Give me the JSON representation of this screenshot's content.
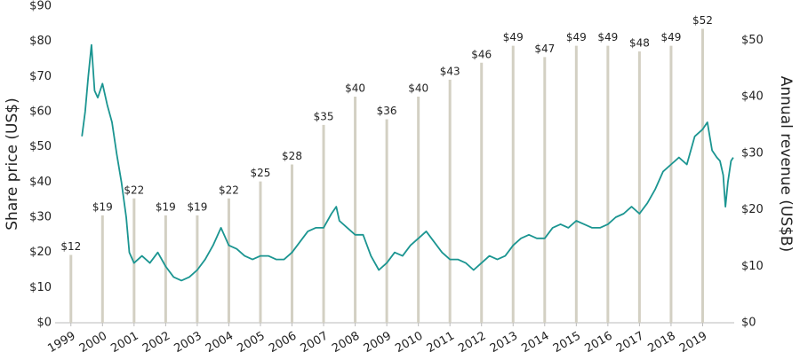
{
  "chart_data": {
    "type": "line",
    "y_label": "Share price (US$)",
    "y2_label": "Annual revenue (US$B)",
    "xlim": [
      1998.5,
      2020
    ],
    "xticks": [
      1999,
      2000,
      2001,
      2002,
      2003,
      2004,
      2005,
      2006,
      2007,
      2008,
      2009,
      2010,
      2011,
      2012,
      2013,
      2014,
      2015,
      2016,
      2017,
      2018,
      2019
    ],
    "ylim": [
      0,
      90
    ],
    "yticks": [
      {
        "value": 0,
        "label": "$0"
      },
      {
        "value": 10,
        "label": "$10"
      },
      {
        "value": 20,
        "label": "$20"
      },
      {
        "value": 30,
        "label": "$30"
      },
      {
        "value": 40,
        "label": "$40"
      },
      {
        "value": 50,
        "label": "$50"
      },
      {
        "value": 60,
        "label": "$60"
      },
      {
        "value": 70,
        "label": "$70"
      },
      {
        "value": 80,
        "label": "$80"
      },
      {
        "value": 90,
        "label": "$90"
      }
    ],
    "y2lim": [
      0,
      56
    ],
    "y2ticks": [
      {
        "value": 0,
        "label": "$0"
      },
      {
        "value": 10,
        "label": "$10"
      },
      {
        "value": 20,
        "label": "$20"
      },
      {
        "value": 30,
        "label": "$30"
      },
      {
        "value": 40,
        "label": "$40"
      },
      {
        "value": 50,
        "label": "$50"
      }
    ],
    "series": [
      {
        "type": "bar",
        "axis": "y2",
        "color": "#d3d0c3",
        "x": [
          1999,
          2000,
          2001,
          2002,
          2003,
          2004,
          2005,
          2006,
          2007,
          2008,
          2009,
          2010,
          2011,
          2012,
          2013,
          2014,
          2015,
          2016,
          2017,
          2018,
          2019
        ],
        "values": [
          12,
          19,
          22,
          19,
          19,
          22,
          25,
          28,
          35,
          40,
          36,
          40,
          43,
          46,
          49,
          47,
          49,
          49,
          48,
          49,
          52
        ],
        "value_labels": [
          "$12",
          "$19",
          "$22",
          "$19",
          "$19",
          "$22",
          "$25",
          "$28",
          "$35",
          "$40",
          "$36",
          "$40",
          "$43",
          "$46",
          "$49",
          "$47",
          "$49",
          "$49",
          "$48",
          "$49",
          "$52"
        ]
      },
      {
        "type": "line",
        "color": "#1b9591",
        "x": [
          1999.35,
          1999.45,
          1999.55,
          1999.65,
          1999.75,
          1999.85,
          2000.0,
          2000.15,
          2000.3,
          2000.45,
          2000.6,
          2000.75,
          2000.85,
          2001.0,
          2001.25,
          2001.5,
          2001.75,
          2002.0,
          2002.25,
          2002.5,
          2002.75,
          2003.0,
          2003.25,
          2003.5,
          2003.75,
          2004.0,
          2004.25,
          2004.5,
          2004.75,
          2005.0,
          2005.25,
          2005.5,
          2005.75,
          2006.0,
          2006.25,
          2006.5,
          2006.75,
          2007.0,
          2007.25,
          2007.4,
          2007.5,
          2007.75,
          2008.0,
          2008.25,
          2008.5,
          2008.75,
          2009.0,
          2009.25,
          2009.5,
          2009.75,
          2010.0,
          2010.25,
          2010.5,
          2010.75,
          2011.0,
          2011.25,
          2011.5,
          2011.75,
          2012.0,
          2012.25,
          2012.5,
          2012.75,
          2013.0,
          2013.25,
          2013.5,
          2013.75,
          2014.0,
          2014.25,
          2014.5,
          2014.75,
          2015.0,
          2015.25,
          2015.5,
          2015.75,
          2016.0,
          2016.25,
          2016.5,
          2016.75,
          2017.0,
          2017.25,
          2017.5,
          2017.75,
          2018.0,
          2018.25,
          2018.5,
          2018.75,
          2019.0,
          2019.15,
          2019.3,
          2019.45,
          2019.55,
          2019.65,
          2019.72,
          2019.8,
          2019.9,
          2019.97
        ],
        "values": [
          53,
          60,
          70,
          79,
          66,
          64,
          68,
          62,
          57,
          48,
          40,
          30,
          20,
          17,
          19,
          17,
          20,
          16,
          13,
          12,
          13,
          15,
          18,
          22,
          27,
          22,
          21,
          19,
          18,
          19,
          19,
          18,
          18,
          20,
          23,
          26,
          27,
          27,
          31,
          33,
          29,
          27,
          25,
          25,
          19,
          15,
          17,
          20,
          19,
          22,
          24,
          26,
          23,
          20,
          18,
          18,
          17,
          15,
          17,
          19,
          18,
          19,
          22,
          24,
          25,
          24,
          24,
          27,
          28,
          27,
          29,
          28,
          27,
          27,
          28,
          30,
          31,
          33,
          31,
          34,
          38,
          43,
          45,
          47,
          45,
          53,
          55,
          57,
          49,
          47,
          46,
          42,
          33,
          40,
          46,
          47
        ]
      }
    ]
  }
}
